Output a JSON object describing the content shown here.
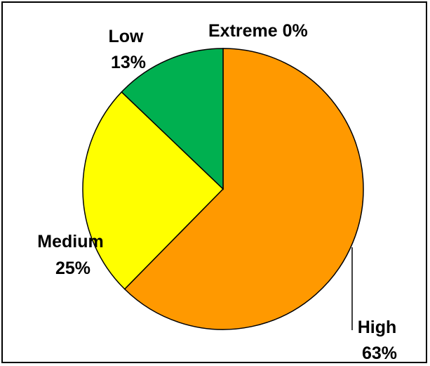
{
  "chart_data": {
    "type": "pie",
    "start_angle_deg": 0,
    "direction": "clockwise",
    "slices": [
      {
        "label": "Extreme",
        "pct_label": "0%",
        "value": 0,
        "color": "#1f3f99"
      },
      {
        "label": "High",
        "pct_label": "63%",
        "value": 63,
        "color": "#ff9900"
      },
      {
        "label": "Medium",
        "pct_label": "25%",
        "value": 25,
        "color": "#ffff00"
      },
      {
        "label": "Low",
        "pct_label": "13%",
        "value": 13,
        "color": "#00b050"
      }
    ],
    "slice_outline_color": "#000000",
    "legend": "none"
  }
}
